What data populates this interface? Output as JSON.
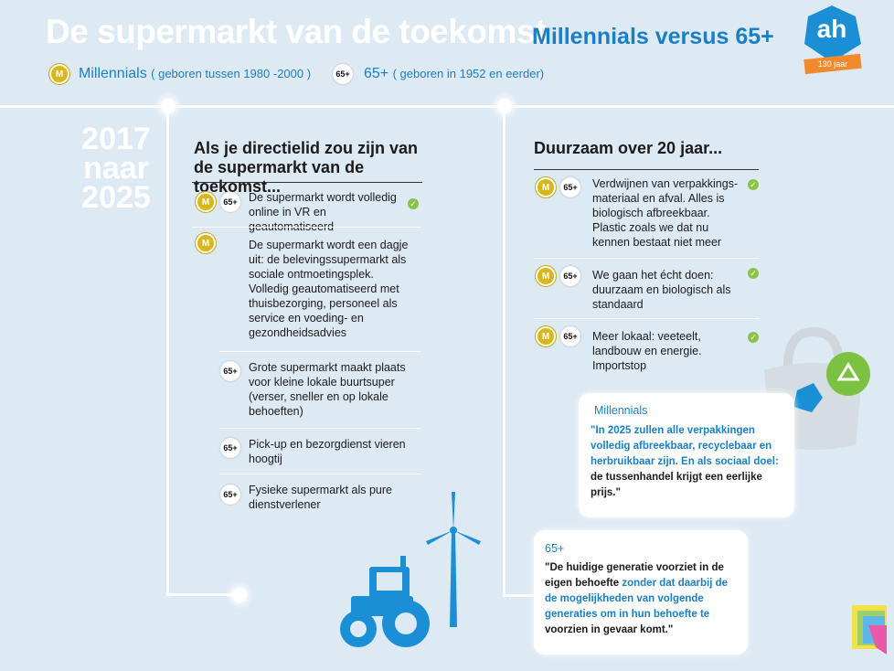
{
  "header": {
    "title": "De supermarkt van de toekomst",
    "subtitle": "Millennials versus 65+",
    "logo_text": "ah",
    "logo_ribbon": "130 jaar"
  },
  "legend": {
    "m_badge": "M",
    "m_label": "Millennials",
    "m_note": "( geboren tussen 1980 -2000 )",
    "o_badge": "65+",
    "o_label": "65+",
    "o_note": "( geboren in 1952 en eerder)"
  },
  "years": {
    "line1": "2017",
    "line2": "naar",
    "line3": "2025"
  },
  "left": {
    "heading": "Als je directielid zou zijn van de supermarkt van de toekomst...",
    "items": [
      {
        "m": "M",
        "o": "65+",
        "text": "De supermarkt wordt volledig online in VR en geautomatiseerd",
        "check": "✓"
      },
      {
        "m": "M",
        "text": "De supermarkt wordt een dagje uit: de belevingssupermarkt als sociale ontmoetingsplek. Volledig geautomatiseerd met thuisbezorging, personeel als service en voeding- en gezondheidsadvies"
      },
      {
        "o": "65+",
        "text": "Grote supermarkt maakt plaats voor kleine lokale buurtsuper (verser, sneller en op lokale behoeften)"
      },
      {
        "o": "65+",
        "text": "Pick-up en bezorgdienst vieren hoogtij"
      },
      {
        "o": "65+",
        "text": "Fysieke supermarkt als pure dienstverlener"
      }
    ]
  },
  "right": {
    "heading": "Duurzaam over 20 jaar...",
    "items": [
      {
        "m": "M",
        "o": "65+",
        "text": "Verdwijnen van verpakkings-materiaal en afval. Alles is biologisch afbreekbaar. Plastic zoals we dat nu kennen bestaat niet meer",
        "check": "✓"
      },
      {
        "m": "M",
        "o": "65+",
        "text": "We gaan het écht doen: duurzaam en biologisch als standaard",
        "check": "✓"
      },
      {
        "m": "M",
        "o": "65+",
        "text": "Meer lokaal: veeteelt, landbouw en energie. Importstop",
        "check": "✓"
      }
    ]
  },
  "quotes": {
    "millennials": {
      "label": "Millennials",
      "blue": "\"In 2025 zullen alle verpakkingen volledig afbreekbaar, recyclebaar en herbruikbaar zijn. En als sociaal doel:",
      "black": "de tussenhandel krijgt een eerlijke prijs.\""
    },
    "senior": {
      "label": "65+",
      "black": "\"De huidige generatie voorziet in de eigen behoefte",
      "blue": "zonder dat daarbij de de mogelijkheden van volgende generaties om in hun behoefte te",
      "black2": "voorzien in gevaar komt.\""
    }
  },
  "colors": {
    "accent": "#1a7fc4",
    "millennial": "#d9b71a",
    "background": "#dde9f3",
    "check": "#8bc34a"
  }
}
